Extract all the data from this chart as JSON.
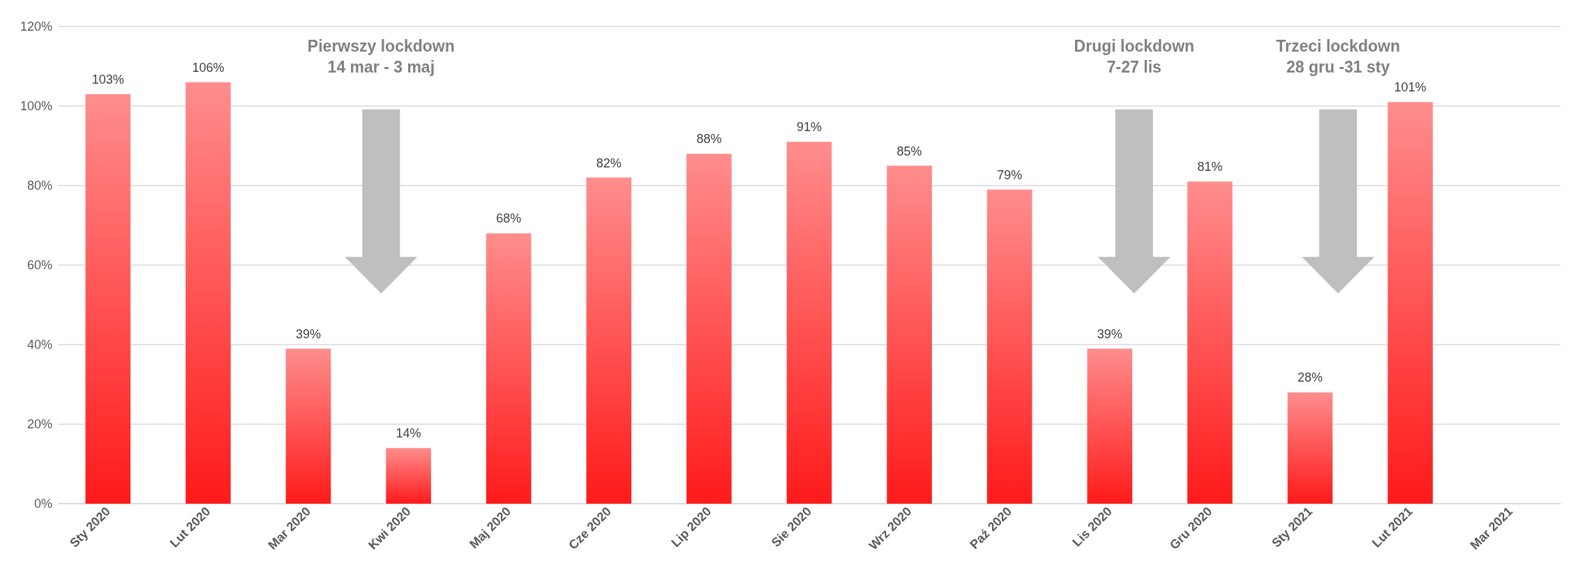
{
  "chart_data": {
    "type": "bar",
    "categories": [
      "Sty 2020",
      "Lut 2020",
      "Mar 2020",
      "Kwi 2020",
      "Maj 2020",
      "Cze 2020",
      "Lip 2020",
      "Sie 2020",
      "Wrz 2020",
      "Paź 2020",
      "Lis 2020",
      "Gru 2020",
      "Sty 2021",
      "Lut 2021",
      "Mar 2021"
    ],
    "series": [
      {
        "color": "#ff1a1a",
        "values": [
          103,
          106,
          39,
          14,
          68,
          82,
          88,
          91,
          85,
          79,
          39,
          81,
          28,
          101,
          null
        ],
        "value_labels": [
          "103%",
          "106%",
          "39%",
          "14%",
          "68%",
          "82%",
          "88%",
          "91%",
          "85%",
          "79%",
          "39%",
          "81%",
          "28%",
          "101%",
          null
        ]
      }
    ],
    "ylim": [
      0,
      120
    ],
    "yticks": [
      {
        "value": 0,
        "label": "0%"
      },
      {
        "value": 20,
        "label": "20%"
      },
      {
        "value": 40,
        "label": "40%"
      },
      {
        "value": 60,
        "label": "60%"
      },
      {
        "value": 80,
        "label": "80%"
      },
      {
        "value": 100,
        "label": "100%"
      },
      {
        "value": 120,
        "label": "120%"
      }
    ],
    "annotations": [
      "Pierwszy lockdown\n14 mar - 3 maj",
      "Drugi lockdown\n7-27 lis",
      "Trzeci lockdown\n28 gru -31 sty"
    ],
    "grid": "y"
  }
}
